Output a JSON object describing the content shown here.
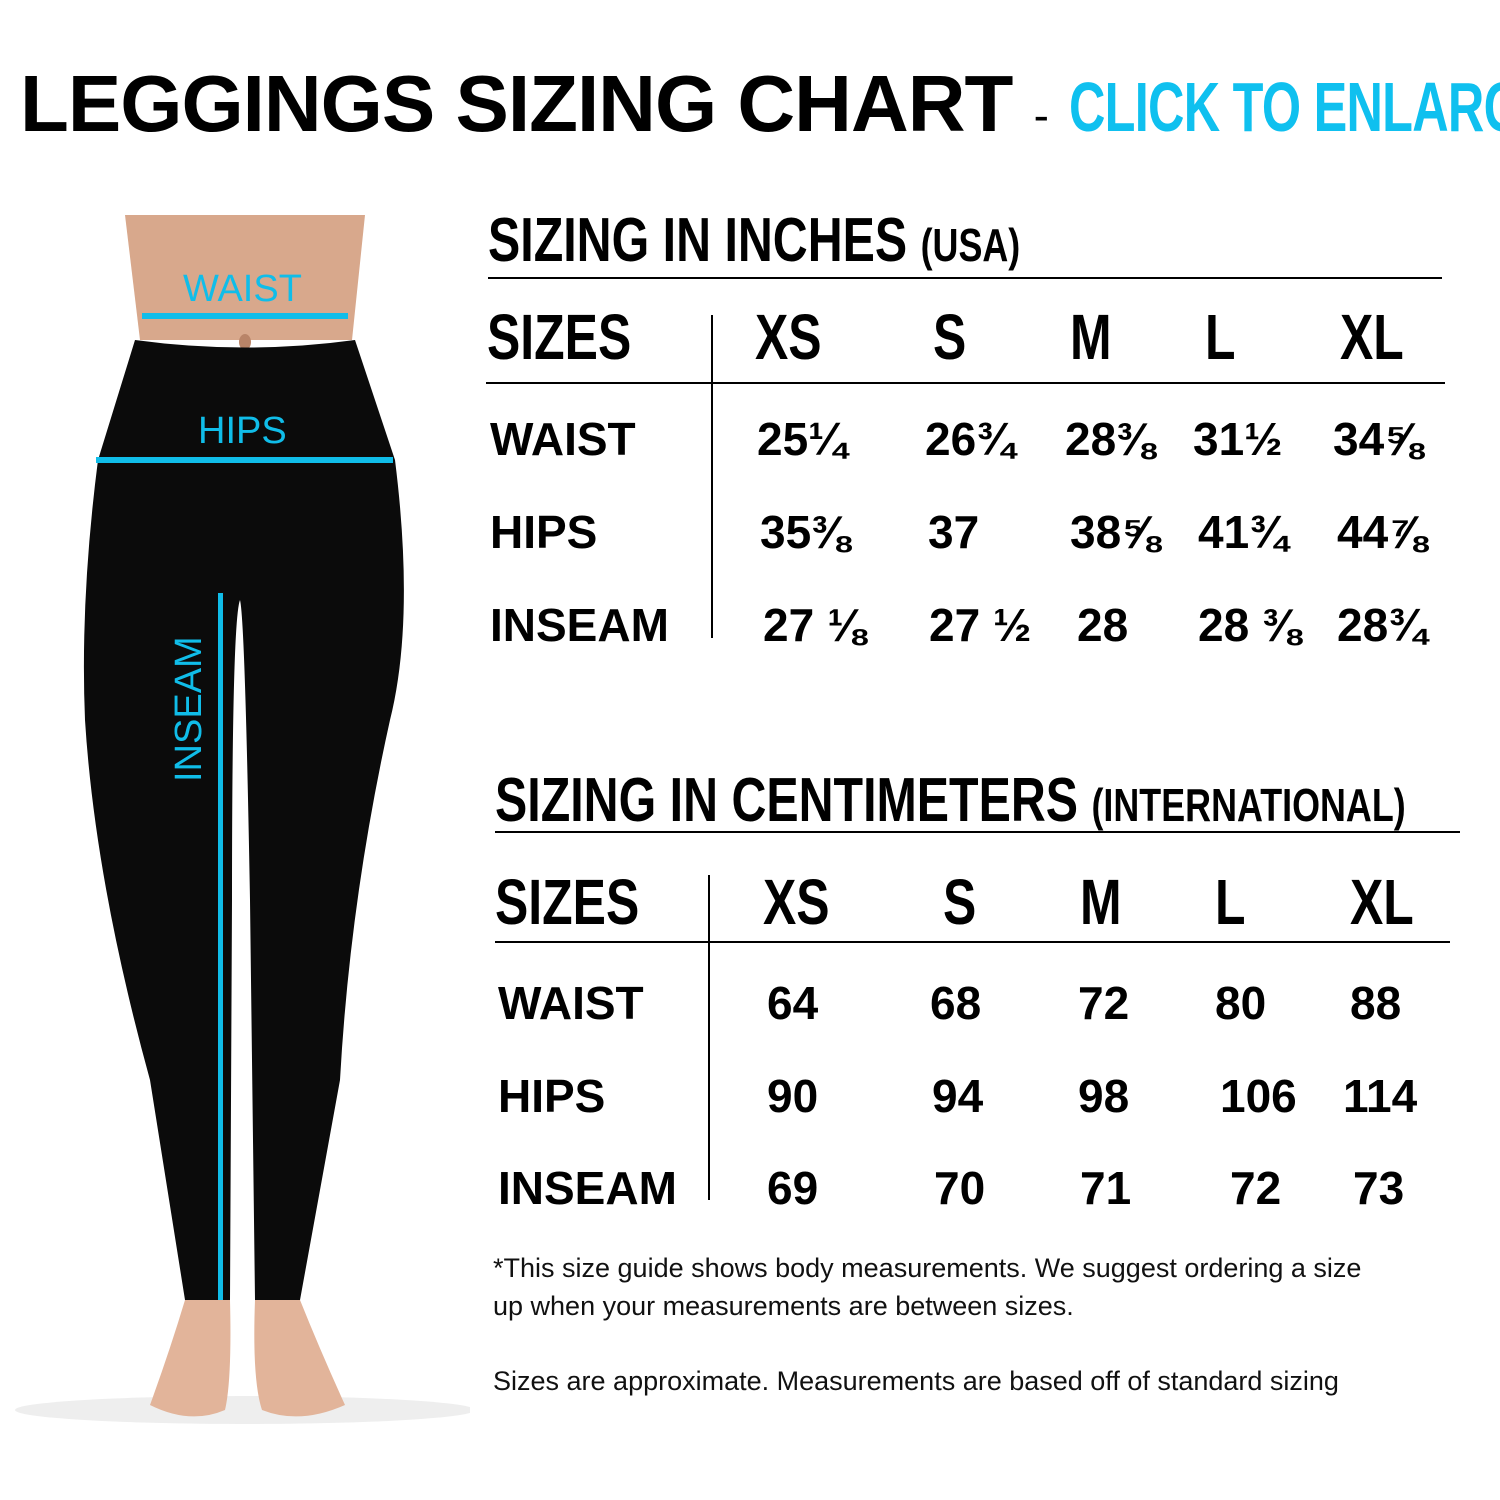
{
  "header": {
    "title": "LEGGINGS SIZING CHART",
    "separator": "-",
    "cta": "CLICK TO ENLARGE"
  },
  "figure": {
    "labels": {
      "waist": "WAIST",
      "hips": "HIPS",
      "inseam": "INSEAM"
    },
    "accent_color": "#10bde9"
  },
  "inches": {
    "title": "SIZING IN INCHES",
    "subtitle": "(USA)",
    "header": [
      "SIZES",
      "XS",
      "S",
      "M",
      "L",
      "XL"
    ],
    "rows": [
      {
        "label": "WAIST",
        "values": [
          "25¼",
          "26¾",
          "28⅜",
          "31½",
          "34⅝"
        ]
      },
      {
        "label": "HIPS",
        "values": [
          "35⅜",
          "37",
          "38⅝",
          "41¾",
          "44⅞"
        ]
      },
      {
        "label": "INSEAM",
        "values": [
          "27 ⅛",
          "27 ½",
          "28",
          "28 ⅜",
          "28¾"
        ]
      }
    ]
  },
  "centimeters": {
    "title": "SIZING IN CENTIMETERS",
    "subtitle": "(INTERNATIONAL)",
    "header": [
      "SIZES",
      "XS",
      "S",
      "M",
      "L",
      "XL"
    ],
    "rows": [
      {
        "label": "WAIST",
        "values": [
          "64",
          "68",
          "72",
          "80",
          "88"
        ]
      },
      {
        "label": "HIPS",
        "values": [
          "90",
          "94",
          "98",
          "106",
          "114"
        ]
      },
      {
        "label": "INSEAM",
        "values": [
          "69",
          "70",
          "71",
          "72",
          "73"
        ]
      }
    ]
  },
  "notes": {
    "line1": "*This size guide shows body measurements. We suggest ordering a size",
    "line2": "up when your measurements are between sizes.",
    "line3": "Sizes are approximate. Measurements are based off of standard sizing"
  }
}
